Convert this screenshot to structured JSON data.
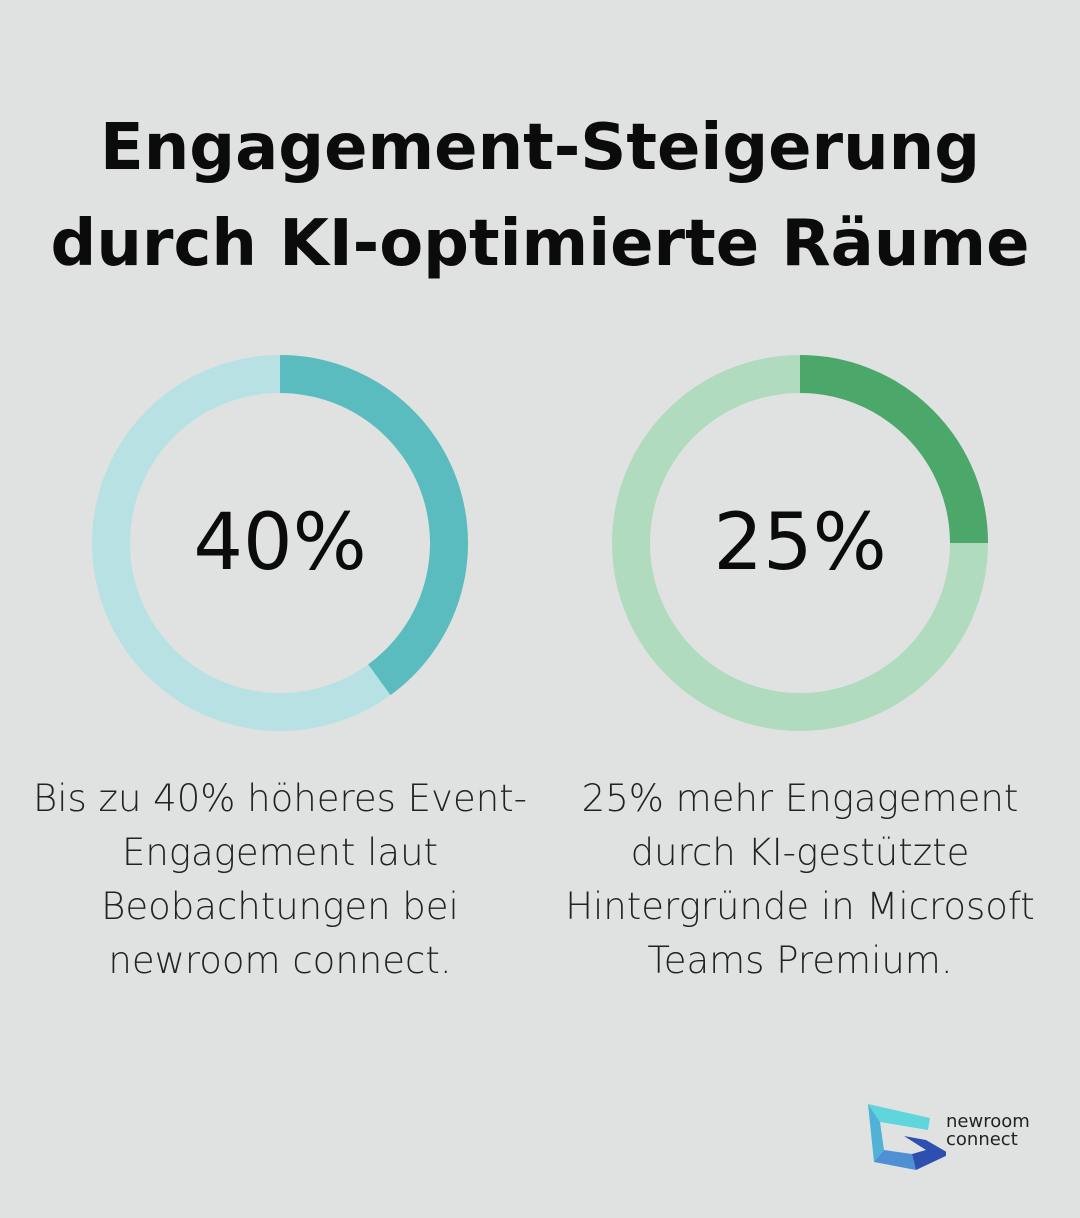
{
  "title": {
    "line1": "Engagement-Steigerung",
    "line2": "durch KI-optimierte Räume"
  },
  "chart_data": [
    {
      "type": "pie",
      "subtype": "donut",
      "value": 40,
      "max": 100,
      "label": "40%",
      "description": "Bis zu 40% höheres Event-Engagement laut Beobachtungen bei newroom connect.",
      "colors": {
        "fill": "#5bbcbf",
        "track": "#b8e1e3"
      }
    },
    {
      "type": "pie",
      "subtype": "donut",
      "value": 25,
      "max": 100,
      "label": "25%",
      "description": "25% mehr Engagement durch KI-gestützte Hintergründe in Microsoft Teams Premium.",
      "colors": {
        "fill": "#4ca76b",
        "track": "#b1dbbf"
      }
    }
  ],
  "logo": {
    "line1": "newroom",
    "line2": "connect"
  }
}
